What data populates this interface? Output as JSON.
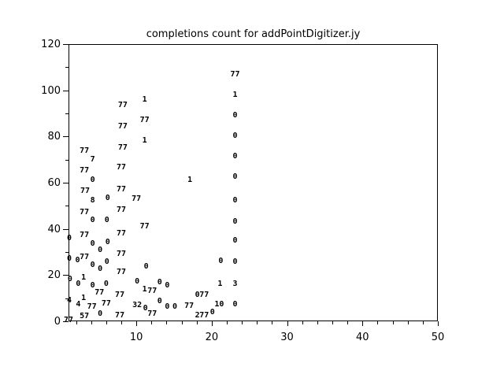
{
  "window": {
    "background": "#ffffff",
    "foreground": "#000000"
  },
  "chart_data": {
    "type": "scatter",
    "title": "completions count for addPointDigitizer.jy",
    "xlabel": "",
    "ylabel": "",
    "xlim": [
      1,
      50
    ],
    "ylim": [
      0,
      120
    ],
    "grid": false,
    "legend_position": "none",
    "marker_style": "text-label",
    "axes": {
      "x_major_ticks": [
        10,
        20,
        30,
        40,
        50
      ],
      "x_minor_ticks": [
        2,
        4,
        6,
        8,
        12,
        14,
        16,
        18,
        22,
        24,
        26,
        28,
        32,
        34,
        36,
        38,
        42,
        44,
        46,
        48
      ],
      "y_major_ticks": [
        0,
        20,
        40,
        60,
        80,
        100,
        120
      ],
      "y_minor_ticks": [
        10,
        30,
        50,
        70,
        90,
        110
      ]
    },
    "points": [
      {
        "x": 1.1,
        "y": 35.8,
        "label": "0"
      },
      {
        "x": 1.1,
        "y": 26.9,
        "label": "0"
      },
      {
        "x": 1.2,
        "y": 18.1,
        "label": "0"
      },
      {
        "x": 1.1,
        "y": 8.9,
        "label": "4"
      },
      {
        "x": 1.0,
        "y": 0.5,
        "label": "77"
      },
      {
        "x": 2.2,
        "y": 26.3,
        "label": "0"
      },
      {
        "x": 2.3,
        "y": 16.0,
        "label": "0"
      },
      {
        "x": 2.3,
        "y": 7.2,
        "label": "4"
      },
      {
        "x": 3.1,
        "y": 73.6,
        "label": "77"
      },
      {
        "x": 3.1,
        "y": 65.1,
        "label": "77"
      },
      {
        "x": 3.2,
        "y": 56.3,
        "label": "77"
      },
      {
        "x": 3.1,
        "y": 47.1,
        "label": "77"
      },
      {
        "x": 3.1,
        "y": 37.2,
        "label": "77"
      },
      {
        "x": 3.1,
        "y": 27.6,
        "label": "77"
      },
      {
        "x": 3.0,
        "y": 18.8,
        "label": "1"
      },
      {
        "x": 3.0,
        "y": 9.9,
        "label": "1"
      },
      {
        "x": 3.1,
        "y": 2.0,
        "label": "57"
      },
      {
        "x": 4.2,
        "y": 69.9,
        "label": "7"
      },
      {
        "x": 4.2,
        "y": 61.0,
        "label": "0"
      },
      {
        "x": 4.2,
        "y": 52.2,
        "label": "8"
      },
      {
        "x": 4.2,
        "y": 43.6,
        "label": "0"
      },
      {
        "x": 4.2,
        "y": 33.4,
        "label": "0"
      },
      {
        "x": 4.2,
        "y": 24.2,
        "label": "0"
      },
      {
        "x": 4.2,
        "y": 15.3,
        "label": "0"
      },
      {
        "x": 4.1,
        "y": 6.1,
        "label": "77"
      },
      {
        "x": 5.2,
        "y": 30.7,
        "label": "0"
      },
      {
        "x": 5.2,
        "y": 22.5,
        "label": "0"
      },
      {
        "x": 5.1,
        "y": 12.3,
        "label": "77"
      },
      {
        "x": 5.2,
        "y": 3.1,
        "label": "0"
      },
      {
        "x": 6.2,
        "y": 53.2,
        "label": "0"
      },
      {
        "x": 6.1,
        "y": 43.6,
        "label": "0"
      },
      {
        "x": 6.2,
        "y": 34.1,
        "label": "0"
      },
      {
        "x": 6.1,
        "y": 25.6,
        "label": "0"
      },
      {
        "x": 6.0,
        "y": 16.0,
        "label": "0"
      },
      {
        "x": 6.0,
        "y": 7.5,
        "label": "77"
      },
      {
        "x": 8.2,
        "y": 93.4,
        "label": "77"
      },
      {
        "x": 8.2,
        "y": 84.2,
        "label": "77"
      },
      {
        "x": 8.2,
        "y": 75.0,
        "label": "77"
      },
      {
        "x": 8.0,
        "y": 66.5,
        "label": "77"
      },
      {
        "x": 8.0,
        "y": 56.9,
        "label": "77"
      },
      {
        "x": 8.0,
        "y": 48.1,
        "label": "77"
      },
      {
        "x": 8.0,
        "y": 37.8,
        "label": "77"
      },
      {
        "x": 8.0,
        "y": 29.0,
        "label": "77"
      },
      {
        "x": 8.0,
        "y": 21.1,
        "label": "77"
      },
      {
        "x": 7.8,
        "y": 11.3,
        "label": "77"
      },
      {
        "x": 7.8,
        "y": 2.4,
        "label": "77"
      },
      {
        "x": 10.0,
        "y": 52.8,
        "label": "77"
      },
      {
        "x": 10.1,
        "y": 17.0,
        "label": "0"
      },
      {
        "x": 10.1,
        "y": 6.8,
        "label": "32"
      },
      {
        "x": 11.1,
        "y": 95.8,
        "label": "1"
      },
      {
        "x": 11.1,
        "y": 86.9,
        "label": "77"
      },
      {
        "x": 11.1,
        "y": 78.1,
        "label": "1"
      },
      {
        "x": 11.1,
        "y": 40.9,
        "label": "77"
      },
      {
        "x": 11.3,
        "y": 23.5,
        "label": "0"
      },
      {
        "x": 11.1,
        "y": 13.6,
        "label": "1"
      },
      {
        "x": 11.2,
        "y": 5.5,
        "label": "0"
      },
      {
        "x": 12.1,
        "y": 13.0,
        "label": "77"
      },
      {
        "x": 12.1,
        "y": 3.1,
        "label": "77"
      },
      {
        "x": 13.1,
        "y": 16.7,
        "label": "0"
      },
      {
        "x": 13.1,
        "y": 8.5,
        "label": "0"
      },
      {
        "x": 14.1,
        "y": 15.3,
        "label": "0"
      },
      {
        "x": 14.1,
        "y": 6.1,
        "label": "0"
      },
      {
        "x": 15.1,
        "y": 6.1,
        "label": "0"
      },
      {
        "x": 17.1,
        "y": 61.0,
        "label": "1"
      },
      {
        "x": 17.0,
        "y": 6.5,
        "label": "77"
      },
      {
        "x": 18.1,
        "y": 11.3,
        "label": "0"
      },
      {
        "x": 19.0,
        "y": 11.3,
        "label": "77"
      },
      {
        "x": 18.1,
        "y": 2.4,
        "label": "2"
      },
      {
        "x": 19.0,
        "y": 2.4,
        "label": "77"
      },
      {
        "x": 20.1,
        "y": 3.8,
        "label": "0"
      },
      {
        "x": 21.2,
        "y": 25.9,
        "label": "0"
      },
      {
        "x": 21.1,
        "y": 16.0,
        "label": "1"
      },
      {
        "x": 21.0,
        "y": 7.2,
        "label": "10"
      },
      {
        "x": 23.1,
        "y": 106.7,
        "label": "77"
      },
      {
        "x": 23.1,
        "y": 97.9,
        "label": "1"
      },
      {
        "x": 23.1,
        "y": 89.0,
        "label": "0"
      },
      {
        "x": 23.1,
        "y": 80.1,
        "label": "0"
      },
      {
        "x": 23.1,
        "y": 71.3,
        "label": "0"
      },
      {
        "x": 23.1,
        "y": 62.4,
        "label": "0"
      },
      {
        "x": 23.1,
        "y": 52.2,
        "label": "0"
      },
      {
        "x": 23.1,
        "y": 43.0,
        "label": "0"
      },
      {
        "x": 23.1,
        "y": 34.8,
        "label": "0"
      },
      {
        "x": 23.1,
        "y": 25.6,
        "label": "0"
      },
      {
        "x": 23.1,
        "y": 16.0,
        "label": "3"
      },
      {
        "x": 23.1,
        "y": 7.2,
        "label": "0"
      }
    ]
  }
}
